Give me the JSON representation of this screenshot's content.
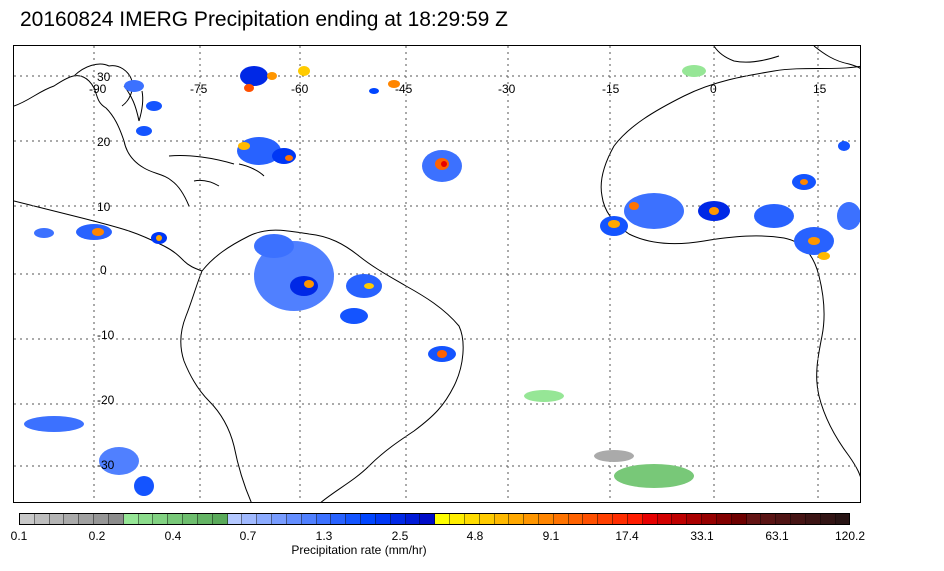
{
  "title": "20160824 IMERG Precipitation ending at 18:29:59 Z",
  "map": {
    "longitude_labels": [
      "-90",
      "-75",
      "-60",
      "-45",
      "-30",
      "-15",
      "0",
      "15"
    ],
    "latitude_labels": [
      "30",
      "20",
      "10",
      "0",
      "-10",
      "-20",
      "-30"
    ],
    "land_color": "#ffffff",
    "coastline_color": "#000000",
    "gridline_color": "#555555"
  },
  "colorbar": {
    "label": "Precipitation rate (mm/hr)",
    "tick_labels": [
      "0.1",
      "0.2",
      "0.4",
      "0.7",
      "1.3",
      "2.5",
      "4.8",
      "9.1",
      "17.4",
      "33.1",
      "63.1",
      "120.2"
    ],
    "colors": [
      "#c8c8c8",
      "#bebebe",
      "#b4b4b4",
      "#aaaaaa",
      "#a0a0a0",
      "#969696",
      "#8c8c8c",
      "#96e696",
      "#8cdc8c",
      "#82d282",
      "#78c878",
      "#6ebe6e",
      "#64b464",
      "#5aaa5a",
      "#b4c8ff",
      "#a0b9ff",
      "#8cabff",
      "#789cff",
      "#648eff",
      "#5080ff",
      "#3c71ff",
      "#2862ff",
      "#1454ff",
      "#0045ff",
      "#0037f5",
      "#0028e6",
      "#001ad7",
      "#000cc8",
      "#ffff00",
      "#ffee00",
      "#ffdc00",
      "#ffcb00",
      "#ffb900",
      "#ffa800",
      "#ff9600",
      "#ff8500",
      "#ff7300",
      "#ff6200",
      "#ff5000",
      "#ff3f00",
      "#ff2d00",
      "#ff1c00",
      "#e60000",
      "#d20000",
      "#be0000",
      "#aa0000",
      "#960000",
      "#820000",
      "#6e0000",
      "#641414",
      "#5a1414",
      "#501414",
      "#461414",
      "#3c1414",
      "#321414",
      "#281414"
    ]
  }
}
